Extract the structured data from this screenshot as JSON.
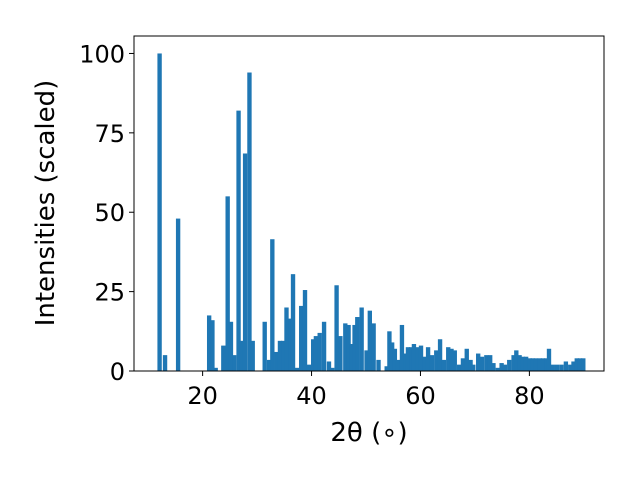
{
  "chart_data": {
    "type": "bar",
    "title": "",
    "xlabel": "2θ (∘)",
    "ylabel": "Intensities (scaled)",
    "xlim": [
      7.4,
      93.7
    ],
    "ylim": [
      0,
      105.5
    ],
    "xticks": [
      20,
      40,
      60,
      80
    ],
    "yticks": [
      0,
      25,
      50,
      75,
      100
    ],
    "grid": false,
    "bar_width": 0.8,
    "color": "#1f77b4",
    "series": [
      {
        "x": [
          12.1,
          13.1,
          15.5,
          21.2,
          21.8,
          22.4,
          23.8,
          24.6,
          25.2,
          25.8,
          26.6,
          27.2,
          27.8,
          28.6,
          29.2,
          31.4,
          32.2,
          32.8,
          33.6,
          34.2,
          34.8,
          35.4,
          36.1,
          36.6,
          37.3,
          38.1,
          38.8,
          39.5,
          40.3,
          40.8,
          41.5,
          42.3,
          43.2,
          43.8,
          44.6,
          45.3,
          46.2,
          46.8,
          47.3,
          47.9,
          48.4,
          49.2,
          50.1,
          50.7,
          51.4,
          52.3,
          53.8,
          54.3,
          54.8,
          55.3,
          55.9,
          56.6,
          57.2,
          57.7,
          58.3,
          58.8,
          59.5,
          60.1,
          60.7,
          61.4,
          62.1,
          62.9,
          63.6,
          64.3,
          65.1,
          65.7,
          66.3,
          67.1,
          67.8,
          68.5,
          69.2,
          69.7,
          70.6,
          71.3,
          72.1,
          72.8,
          73.4,
          74.2,
          74.9,
          75.5,
          76.3,
          77.1,
          77.6,
          78.2,
          78.8,
          79.4,
          80.1,
          80.6,
          81.2,
          81.9,
          82.5,
          83.1,
          83.6,
          84.3,
          85.1,
          85.9,
          86.7,
          87.5,
          88.1,
          88.7,
          89.3,
          89.9
        ],
        "values": [
          100,
          5,
          48,
          17.5,
          16,
          1,
          8,
          55,
          15.5,
          5,
          82,
          9.5,
          68.5,
          94,
          9.5,
          15.5,
          3.5,
          41.5,
          6,
          9.5,
          9.5,
          20,
          16.5,
          30.5,
          1,
          20.5,
          25.5,
          2,
          10,
          11,
          12,
          15.5,
          3,
          1,
          27,
          11,
          15,
          14.5,
          8.5,
          14.5,
          17,
          20,
          6.5,
          19,
          15,
          3.5,
          1.5,
          12.5,
          9,
          7,
          3.5,
          14.5,
          5.5,
          7.5,
          7.5,
          8.5,
          7.5,
          8,
          4.5,
          7.5,
          5,
          6.5,
          10,
          3.5,
          7.5,
          7,
          6.5,
          2,
          4,
          7,
          3.5,
          2,
          5.5,
          4.5,
          5,
          5,
          2.5,
          1,
          2.5,
          2,
          3.5,
          5,
          6.5,
          5,
          4.5,
          4.5,
          4,
          4,
          4,
          4,
          4,
          4,
          7,
          2,
          2,
          2,
          3,
          2,
          3,
          4,
          4,
          4
        ]
      }
    ]
  }
}
